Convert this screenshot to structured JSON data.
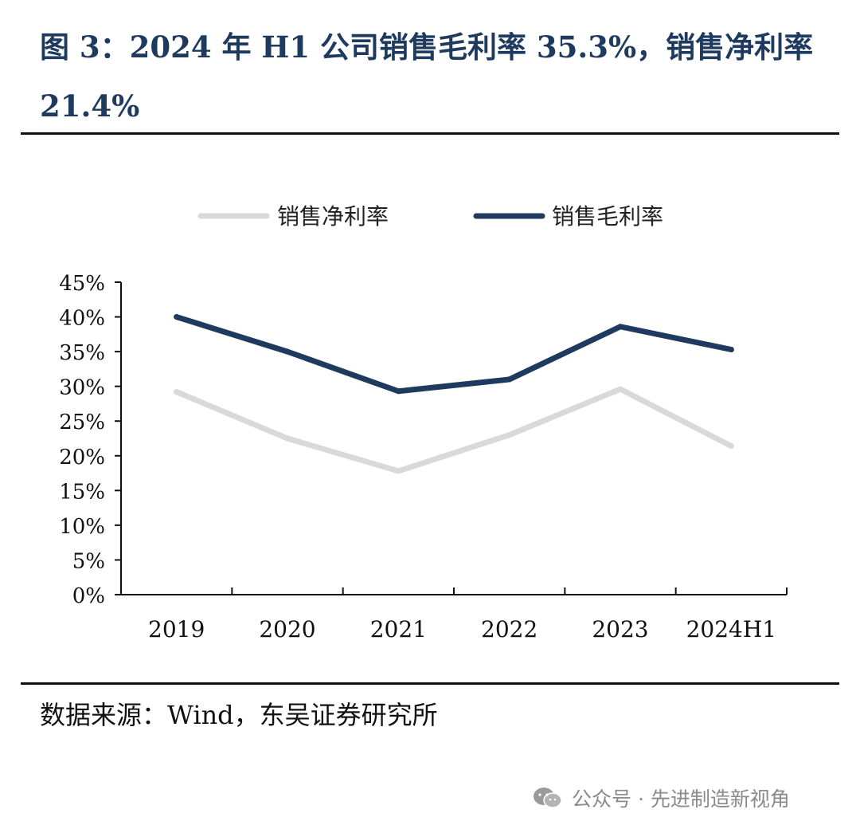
{
  "figure": {
    "title": "图 3：2024 年 H1 公司销售毛利率 35.3%，销售净利率 21.4%",
    "source": "数据来源：Wind，东吴证券研究所",
    "watermark": "公众号 · 先进制造新视角"
  },
  "chart_data": {
    "type": "line",
    "categories": [
      "2019",
      "2020",
      "2021",
      "2022",
      "2023",
      "2024H1"
    ],
    "series": [
      {
        "name": "销售净利率",
        "values": [
          29.2,
          22.5,
          17.8,
          23.0,
          29.6,
          21.4
        ],
        "color": "#d9d9d9"
      },
      {
        "name": "销售毛利率",
        "values": [
          40.0,
          35.0,
          29.3,
          31.0,
          38.6,
          35.3
        ],
        "color": "#1f3a5f"
      }
    ],
    "ylim": [
      0,
      45
    ],
    "yticks": [
      "0%",
      "5%",
      "10%",
      "15%",
      "20%",
      "25%",
      "30%",
      "35%",
      "40%",
      "45%"
    ],
    "grid": false,
    "legend_position": "top"
  }
}
